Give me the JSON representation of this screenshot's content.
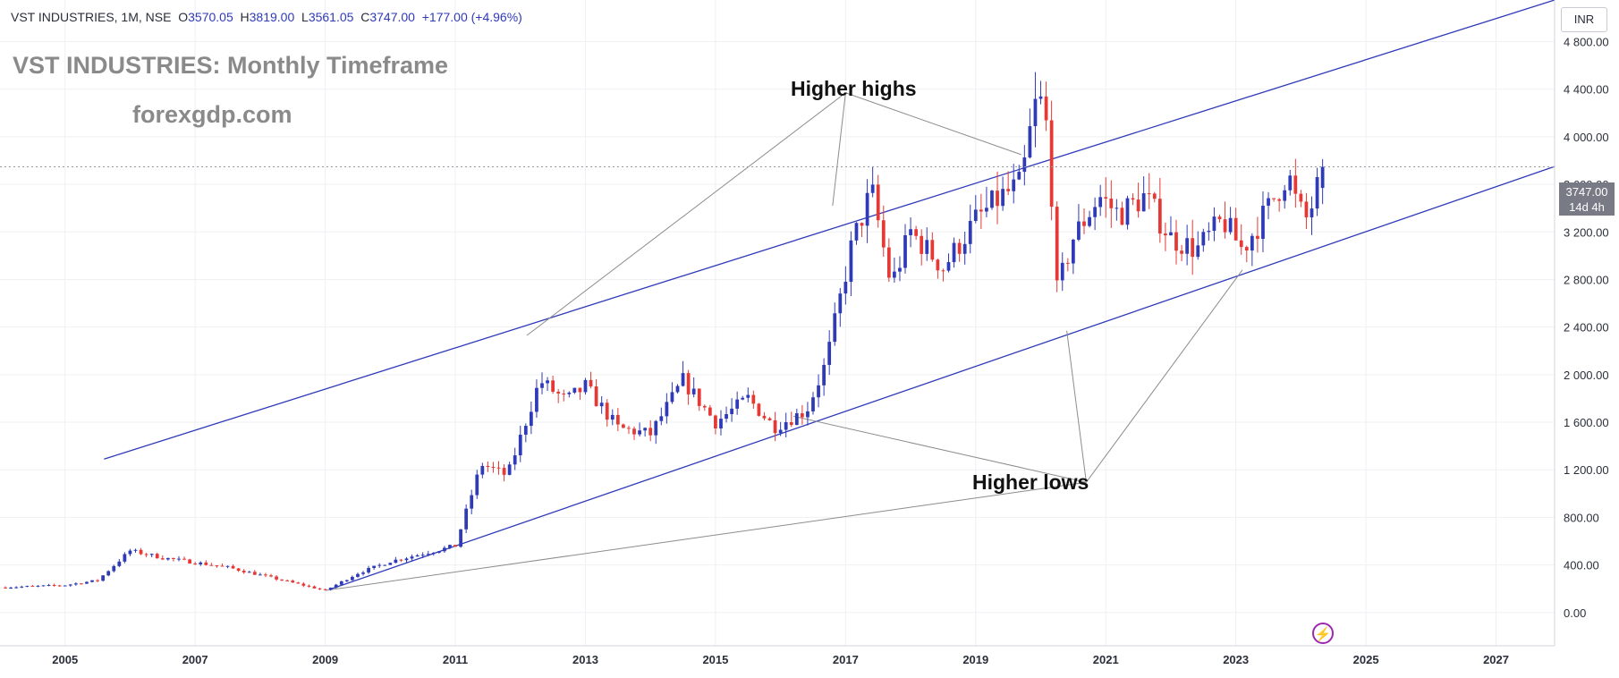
{
  "header": {
    "symbol": "VST INDUSTRIES, 1M, NSE",
    "open_label": "O",
    "open": "3570.05",
    "high_label": "H",
    "high": "3819.00",
    "low_label": "L",
    "low": "3561.05",
    "close_label": "C",
    "close": "3747.00",
    "change": "+177.00 (+4.96%)"
  },
  "overlay": {
    "title": "VST INDUSTRIES: Monthly Timeframe",
    "site": "forexgdp.com",
    "higher_highs": "Higher highs",
    "higher_lows": "Higher lows"
  },
  "price_scale": {
    "currency": "INR",
    "last_price": "3747.00",
    "countdown": "14d 4h"
  },
  "colors": {
    "up": "#2f3ab8",
    "down": "#e53935",
    "channel": "#2f3ab8",
    "pointer": "#8c8c8c",
    "grid": "#eef0f3"
  },
  "chart_data": {
    "type": "candlestick",
    "title": "VST INDUSTRIES: Monthly Timeframe",
    "ylabel": "INR",
    "ylim": [
      -280,
      5150
    ],
    "y_ticks": [
      0,
      400,
      800,
      1200,
      1600,
      2000,
      2400,
      2800,
      3200,
      3600,
      4000,
      4400,
      4800
    ],
    "y_tick_labels": [
      "0.00",
      "400.00",
      "800.00",
      "1 200.00",
      "1 600.00",
      "2 000.00",
      "2 400.00",
      "2 800.00",
      "3 200.00",
      "3 600.00",
      "4 000.00",
      "4 400.00",
      "4 800.00"
    ],
    "x_range": [
      2004.0,
      2027.9
    ],
    "x_ticks": [
      2005,
      2007,
      2009,
      2011,
      2013,
      2015,
      2017,
      2019,
      2021,
      2023,
      2025,
      2027
    ],
    "x_tick_labels": [
      "2005",
      "2007",
      "2009",
      "2011",
      "2013",
      "2015",
      "2017",
      "2019",
      "2021",
      "2023",
      "2025",
      "2027"
    ],
    "grid": true,
    "last_price": 3747.0,
    "anchors": [
      [
        2004.0,
        210
      ],
      [
        2005.0,
        230
      ],
      [
        2005.5,
        270
      ],
      [
        2006.0,
        520
      ],
      [
        2006.5,
        460
      ],
      [
        2007.5,
        380
      ],
      [
        2009.0,
        185
      ],
      [
        2009.5,
        330
      ],
      [
        2010.0,
        430
      ],
      [
        2011.0,
        560
      ],
      [
        2011.4,
        1250
      ],
      [
        2011.8,
        1150
      ],
      [
        2012.3,
        1950
      ],
      [
        2012.7,
        1780
      ],
      [
        2013.0,
        1900
      ],
      [
        2013.5,
        1550
      ],
      [
        2014.0,
        1500
      ],
      [
        2014.5,
        1950
      ],
      [
        2015.0,
        1600
      ],
      [
        2015.5,
        1800
      ],
      [
        2015.9,
        1560
      ],
      [
        2016.4,
        1700
      ],
      [
        2016.7,
        2100
      ],
      [
        2017.1,
        3100
      ],
      [
        2017.4,
        3550
      ],
      [
        2017.7,
        2750
      ],
      [
        2018.0,
        3200
      ],
      [
        2018.5,
        2900
      ],
      [
        2019.0,
        3300
      ],
      [
        2019.4,
        3500
      ],
      [
        2019.7,
        3600
      ],
      [
        2019.9,
        4250
      ],
      [
        2020.05,
        4300
      ],
      [
        2020.15,
        3700
      ],
      [
        2020.25,
        2700
      ],
      [
        2020.5,
        3150
      ],
      [
        2020.9,
        3500
      ],
      [
        2021.2,
        3350
      ],
      [
        2021.6,
        3500
      ],
      [
        2022.0,
        3150
      ],
      [
        2022.4,
        3050
      ],
      [
        2022.8,
        3300
      ],
      [
        2023.1,
        3050
      ],
      [
        2023.5,
        3400
      ],
      [
        2023.8,
        3700
      ],
      [
        2023.95,
        3400
      ],
      [
        2024.1,
        3300
      ],
      [
        2024.25,
        3570
      ],
      [
        2024.35,
        3747
      ]
    ],
    "channel_upper": [
      [
        2005.6,
        1290
      ],
      [
        2027.9,
        5150
      ]
    ],
    "channel_lower": [
      [
        2009.1,
        200
      ],
      [
        2027.9,
        3750
      ]
    ],
    "annotations": [
      {
        "text": "Higher highs",
        "x": 2017.0,
        "y": 4520
      },
      {
        "text": "Higher lows",
        "x": 2020.7,
        "y": 1170
      }
    ],
    "higher_high_points": [
      [
        2012.1,
        2330
      ],
      [
        2016.8,
        3420
      ],
      [
        2019.7,
        3850
      ]
    ],
    "higher_low_points": [
      [
        2009.0,
        185
      ],
      [
        2016.2,
        1650
      ],
      [
        2020.4,
        2370
      ],
      [
        2023.1,
        2880
      ]
    ]
  }
}
